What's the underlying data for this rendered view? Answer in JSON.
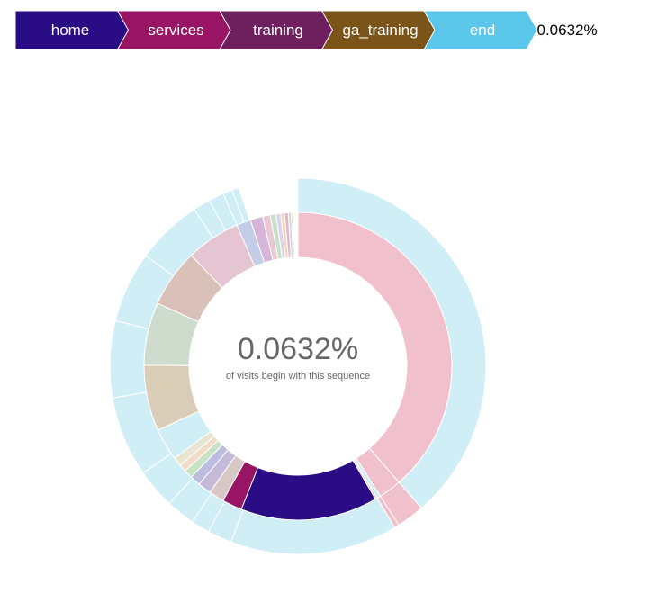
{
  "breadcrumb": {
    "items": [
      {
        "label": "home",
        "color": "#2a0d84"
      },
      {
        "label": "services",
        "color": "#981566"
      },
      {
        "label": "training",
        "color": "#6e1f5e"
      },
      {
        "label": "ga_training",
        "color": "#7a5419"
      },
      {
        "label": "end",
        "color": "#5bc7eb"
      }
    ],
    "percentage": "0.0632%"
  },
  "explanation": {
    "percentage": "0.0632%",
    "caption": "of visits begin with this sequence"
  },
  "chart_data": {
    "type": "sunburst",
    "rings": [
      {
        "level": 1,
        "segments": [
          {
            "label": "",
            "share": 0.386,
            "color": "#f0c0cc"
          },
          {
            "label": "",
            "share": 0.024,
            "color": "#f0c0cc"
          },
          {
            "label": "",
            "share": 0.004,
            "color": "#cfeef6"
          },
          {
            "label": "",
            "share": 0.002,
            "color": "#f0c0cc"
          },
          {
            "label": "",
            "share": 0.144,
            "color": "#2a0d84"
          },
          {
            "label": "",
            "share": 0.021,
            "color": "#981566"
          },
          {
            "label": "",
            "share": 0.016,
            "color": "#d9c7c4"
          },
          {
            "label": "",
            "share": 0.014,
            "color": "#c5bbd9"
          },
          {
            "label": "",
            "share": 0.011,
            "color": "#bdbde0"
          },
          {
            "label": "",
            "share": 0.009,
            "color": "#c8e3c4"
          },
          {
            "label": "",
            "share": 0.008,
            "color": "#f2dcc8"
          },
          {
            "label": "",
            "share": 0.009,
            "color": "#e7e6d2"
          },
          {
            "label": "",
            "share": 0.034,
            "color": "#cfeef6"
          },
          {
            "label": "",
            "share": 0.069,
            "color": "#d9cdb8"
          },
          {
            "label": "",
            "share": 0.066,
            "color": "#cddccd"
          },
          {
            "label": "",
            "share": 0.061,
            "color": "#d9c1ba"
          },
          {
            "label": "",
            "share": 0.057,
            "color": "#e6c5d2"
          },
          {
            "label": "",
            "share": 0.015,
            "color": "#c4cde6"
          },
          {
            "label": "",
            "share": 0.013,
            "color": "#d5b6d8"
          },
          {
            "label": "",
            "share": 0.008,
            "color": "#e9c8d2"
          },
          {
            "label": "",
            "share": 0.006,
            "color": "#c8e0c8"
          },
          {
            "label": "",
            "share": 0.005,
            "color": "#dcd3ec"
          },
          {
            "label": "",
            "share": 0.004,
            "color": "#f2d6b8"
          },
          {
            "label": "",
            "share": 0.004,
            "color": "#e0b8c8"
          },
          {
            "label": "",
            "share": 0.003,
            "color": "#c8dce8"
          },
          {
            "label": "",
            "share": 0.002,
            "color": "#eed8b8"
          }
        ]
      },
      {
        "level": 2,
        "segments": [
          {
            "label": "",
            "share": 0.386,
            "color": "#cfeef6"
          },
          {
            "label": "",
            "share": 0.024,
            "color": "#f0c0cc"
          },
          {
            "label": "",
            "share": 0.004,
            "color": "#f0c0cc"
          },
          {
            "label": "",
            "share": 0.144,
            "color": "#cfeef6"
          },
          {
            "label": "",
            "share": 0.021,
            "color": "#cfeef6"
          },
          {
            "label": "",
            "share": 0.016,
            "color": "#cfeef6"
          },
          {
            "label": "",
            "share": 0.025,
            "color": "#cfeef6"
          },
          {
            "label": "",
            "share": 0.034,
            "color": "#cfeef6"
          },
          {
            "label": "",
            "share": 0.069,
            "color": "#cfeef6"
          },
          {
            "label": "",
            "share": 0.066,
            "color": "#cfeef6"
          },
          {
            "label": "",
            "share": 0.061,
            "color": "#cfeef6"
          },
          {
            "label": "",
            "share": 0.057,
            "color": "#cfeef6"
          },
          {
            "label": "",
            "share": 0.015,
            "color": "#cfeef6"
          },
          {
            "label": "",
            "share": 0.013,
            "color": "#cfeef6"
          },
          {
            "label": "",
            "share": 0.008,
            "color": "#cfeef6"
          },
          {
            "label": "",
            "share": 0.006,
            "color": "#cfeef6"
          }
        ]
      }
    ]
  }
}
